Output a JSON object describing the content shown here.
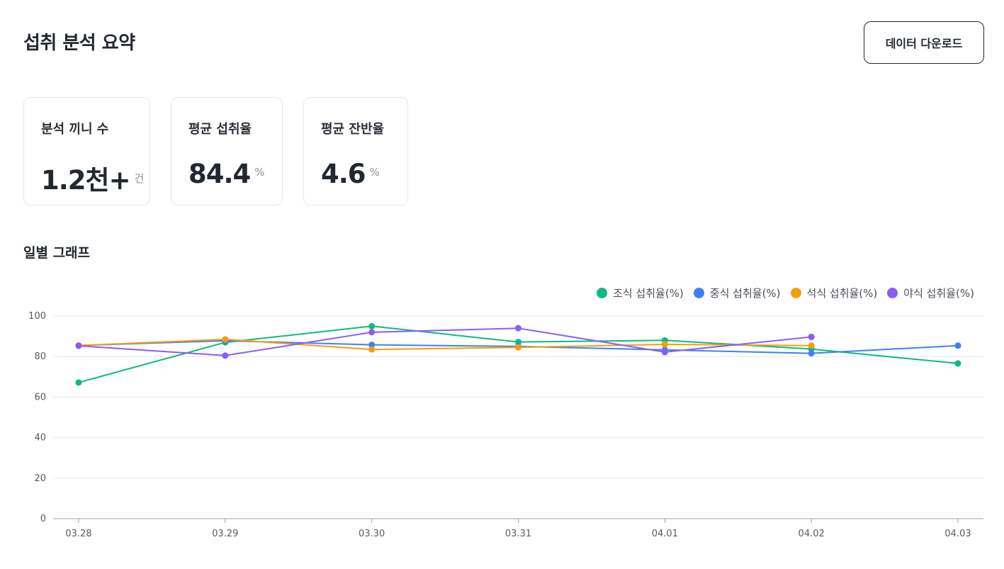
{
  "header": {
    "title": "섭취 분석 요약",
    "download_label": "데이터 다운로드"
  },
  "stats": [
    {
      "label": "분석 끼니 수",
      "value": "1.2천+",
      "unit": "건"
    },
    {
      "label": "평균 섭취율",
      "value": "84.4",
      "unit": "%"
    },
    {
      "label": "평균 잔반율",
      "value": "4.6",
      "unit": "%"
    }
  ],
  "section": {
    "title": "일별 그래프"
  },
  "chart_data": {
    "type": "line",
    "x": [
      "03.28",
      "03.29",
      "03.30",
      "03.31",
      "04.01",
      "04.02",
      "04.03"
    ],
    "ylim": [
      0,
      100
    ],
    "yticks": [
      0,
      20,
      40,
      60,
      80,
      100
    ],
    "grid": true,
    "legend_position": "top-right",
    "series": [
      {
        "name": "조식 섭취율(%)",
        "color": "#10b981",
        "values": [
          67.2,
          87.0,
          95.0,
          87.2,
          88.0,
          83.7,
          76.6
        ]
      },
      {
        "name": "중식 섭취율(%)",
        "color": "#3b82f6",
        "values": [
          85.5,
          87.8,
          85.8,
          85.0,
          83.3,
          81.6,
          85.4
        ]
      },
      {
        "name": "석식 섭취율(%)",
        "color": "#f59e0b",
        "values": [
          85.5,
          88.5,
          83.5,
          84.5,
          86.0,
          85.4,
          null
        ]
      },
      {
        "name": "야식 섭취율(%)",
        "color": "#8b5cf6",
        "values": [
          85.3,
          80.5,
          92.0,
          94.0,
          82.2,
          89.7,
          null
        ]
      }
    ]
  }
}
